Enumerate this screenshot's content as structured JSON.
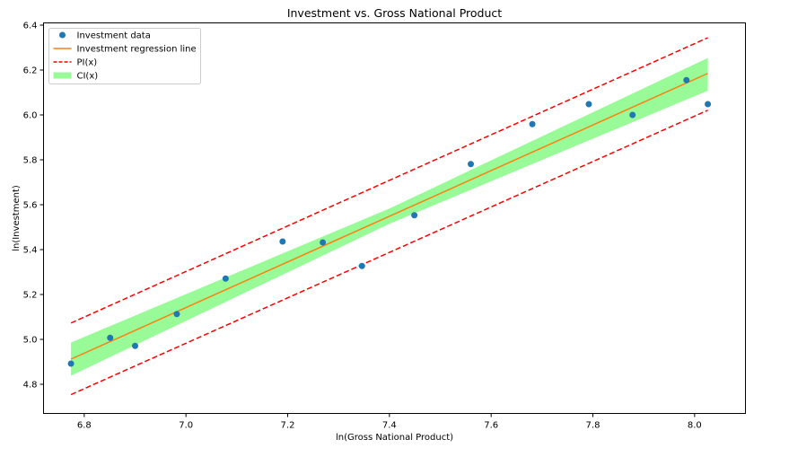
{
  "chart_data": {
    "type": "scatter",
    "title": "Investment vs. Gross National Product",
    "xlabel": "ln(Gross National Product)",
    "ylabel": "ln(Investment)",
    "xlim": [
      6.72,
      8.1
    ],
    "ylim": [
      4.67,
      6.41
    ],
    "xticks": [
      6.8,
      7.0,
      7.2,
      7.4,
      7.6,
      7.8,
      8.0
    ],
    "xtick_labels": [
      "6.8",
      "7.0",
      "7.2",
      "7.4",
      "7.6",
      "7.8",
      "8.0"
    ],
    "yticks": [
      4.8,
      5.0,
      5.2,
      5.4,
      5.6,
      5.8,
      6.0,
      6.2,
      6.4
    ],
    "ytick_labels": [
      "4.8",
      "5.0",
      "5.2",
      "5.4",
      "5.6",
      "5.8",
      "6.0",
      "6.2",
      "6.4"
    ],
    "grid": false,
    "legend_position": "top-left",
    "legend": [
      {
        "label": "Investment data",
        "kind": "marker",
        "color": "#1f77b4"
      },
      {
        "label": "Investment regression line",
        "kind": "line",
        "color": "#ff7f0e"
      },
      {
        "label": "PI(x)",
        "kind": "dashed",
        "color": "#ff0000"
      },
      {
        "label": "CI(x)",
        "kind": "band",
        "color": "#98fb98"
      }
    ],
    "series": [
      {
        "name": "Investment data",
        "kind": "scatter",
        "color": "#1f77b4",
        "x": [
          6.774,
          6.851,
          6.9,
          6.982,
          7.078,
          7.19,
          7.269,
          7.346,
          7.449,
          7.56,
          7.681,
          7.792,
          7.878,
          7.984,
          8.026
        ],
        "y": [
          4.892,
          5.007,
          4.971,
          5.113,
          5.271,
          5.436,
          5.432,
          5.327,
          5.553,
          5.781,
          5.959,
          6.048,
          6.0,
          6.155,
          6.048
        ]
      },
      {
        "name": "Investment regression line",
        "kind": "line",
        "color": "#ff7f0e",
        "x": [
          6.774,
          8.026
        ],
        "y": [
          4.912,
          6.185
        ]
      },
      {
        "name": "PI(x)",
        "kind": "dashed",
        "color": "#ff0000",
        "x": [
          6.774,
          8.026
        ],
        "upper": [
          5.073,
          6.344
        ],
        "lower": [
          4.754,
          6.021
        ]
      },
      {
        "name": "CI(x)",
        "kind": "band",
        "color": "#98fb98",
        "x": [
          6.774,
          7.4,
          8.026
        ],
        "upper": [
          4.986,
          5.583,
          6.254
        ],
        "lower": [
          4.838,
          5.515,
          6.108
        ]
      }
    ]
  }
}
